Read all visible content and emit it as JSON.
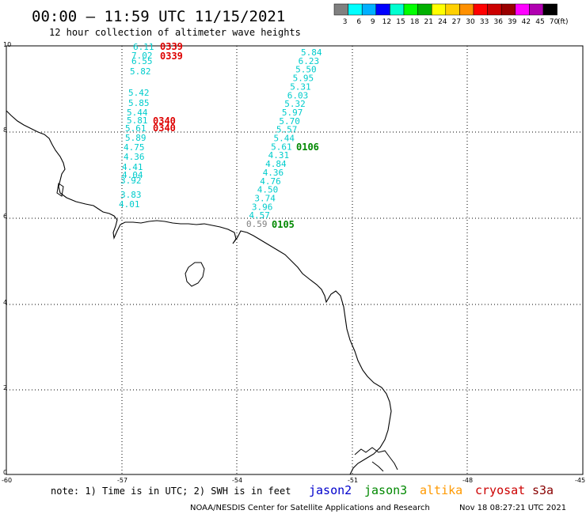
{
  "header": {
    "title": "00:00 – 11:59 UTC 11/15/2021",
    "subtitle": "12 hour collection of altimeter wave heights"
  },
  "legend": {
    "labels": [
      "3",
      "6",
      "9",
      "12",
      "15",
      "18",
      "21",
      "24",
      "27",
      "30",
      "33",
      "36",
      "39",
      "42",
      "45",
      "70"
    ],
    "unit": "(ft)",
    "colors": [
      "#808080",
      "#00ffff",
      "#00b0ff",
      "#0000ff",
      "#00ffd0",
      "#00ff00",
      "#00b000",
      "#ffff00",
      "#ffd000",
      "#ff9000",
      "#ff0000",
      "#cc0000",
      "#990000",
      "#ff00ff",
      "#b000b0",
      "#000000"
    ]
  },
  "axes": {
    "x_ticks": [
      "-60",
      "-57",
      "-54",
      "-51",
      "-48",
      "-45"
    ],
    "y_ticks": [
      "0",
      "2",
      "4",
      "6",
      "8",
      "10"
    ]
  },
  "tracks": {
    "track_a_values": [
      "6.11",
      "7.02",
      "6.55",
      "5.82",
      "5.42",
      "5.85",
      "5.44",
      "5.81",
      "5.61",
      "5.89",
      "4.75",
      "4.36",
      "4.41",
      "4.04",
      "3.92",
      "3.83",
      "4.01"
    ],
    "track_b_values": [
      "5.84",
      "6.23",
      "5.50",
      "5.95",
      "5.31",
      "6.03",
      "5.32",
      "5.97",
      "5.70",
      "5.57",
      "5.44",
      "5.61",
      "4.31",
      "4.84",
      "4.36",
      "4.76",
      "4.50",
      "3.74",
      "3.96",
      "4.57",
      "0.59"
    ],
    "track_a_color": "#00cccc",
    "track_b_color": "#00cccc",
    "low_value_color": "#808080"
  },
  "time_labels": {
    "a_top_1": "0339",
    "a_top_2": "0339",
    "a_mid_1": "0340",
    "a_mid_2": "0340",
    "b_mid": "0106",
    "b_bottom": "0105",
    "red": "#dd0000",
    "green": "#008800"
  },
  "footer_note": {
    "note": "note: 1) Time is in UTC; 2) SWH is in feet",
    "satellites": [
      {
        "name": "jason2",
        "color": "#0000cc"
      },
      {
        "name": "jason3",
        "color": "#008800"
      },
      {
        "name": "altika",
        "color": "#ff9900"
      },
      {
        "name": "cryosat",
        "color": "#cc0000"
      },
      {
        "name": "s3a",
        "color": "#880000"
      }
    ],
    "credit": "NOAA/NESDIS Center for Satellite Applications and Research",
    "generated": "Nov 18 08:27:21 UTC 2021"
  }
}
